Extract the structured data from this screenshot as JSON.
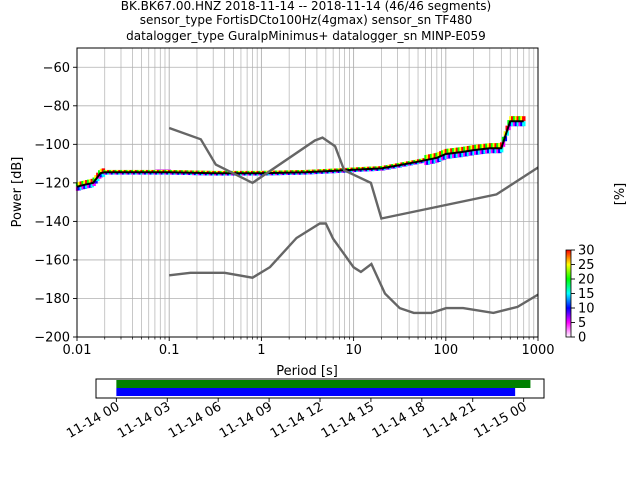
{
  "title_lines": [
    "BK.BK67.00.HNZ   2018-11-14 -- 2018-11-14  (46/46 segments)",
    "sensor_type FortisDCto100Hz(4gmax) sensor_sn TF480",
    "datalogger_type GuralpMinimus+ datalogger_sn MINP-E059"
  ],
  "chart_data": [
    {
      "type": "heatmap",
      "description_kind": "probabilistic power spectral density",
      "xlabel": "Period [s]",
      "ylabel": "Power [dB]",
      "xscale": "log",
      "xlim": [
        0.01,
        1000
      ],
      "ylim": [
        -200,
        -50
      ],
      "xtick_labels": [
        "0.01",
        "0.1",
        "1",
        "10",
        "100",
        "1000"
      ],
      "yticks": [
        -200,
        -180,
        -160,
        -140,
        -120,
        -100,
        -80,
        -60
      ],
      "grid": true,
      "colorbar": {
        "label": "[%]",
        "range": [
          0,
          30
        ],
        "ticks": [
          0,
          5,
          10,
          15,
          20,
          25,
          30
        ],
        "colors": [
          "#ffffff",
          "#ff00ff",
          "#0000ff",
          "#00ffff",
          "#00ff00",
          "#ffff00",
          "#ff0000"
        ]
      },
      "noise_models": [
        {
          "name": "high",
          "x": [
            0.1,
            0.22,
            0.32,
            0.8,
            3.8,
            4.6,
            6.3,
            7.9,
            15.4,
            20,
            354.8,
            1000
          ],
          "y": [
            -91.5,
            -97.4,
            -110.5,
            -120,
            -98,
            -96.5,
            -101,
            -113.5,
            -120,
            -138.5,
            -126,
            -112
          ]
        },
        {
          "name": "low",
          "x": [
            0.1,
            0.17,
            0.4,
            0.8,
            1.24,
            2.4,
            4.3,
            5,
            6,
            10,
            12,
            15.6,
            21.9,
            31.6,
            45,
            70,
            101,
            154,
            328,
            600,
            1000
          ],
          "y": [
            -168,
            -166.7,
            -166.7,
            -169.2,
            -163.7,
            -148.6,
            -141.1,
            -141.1,
            -149,
            -163.8,
            -166.2,
            -162.1,
            -177.5,
            -185,
            -187.5,
            -187.5,
            -185,
            -185,
            -187.5,
            -184.4,
            -178
          ]
        }
      ],
      "mode_curve": {
        "color": "#000000",
        "x": [
          0.01,
          0.012,
          0.015,
          0.018,
          0.02,
          0.05,
          0.1,
          0.3,
          1,
          3,
          5,
          8,
          12,
          20,
          30,
          50,
          80,
          100,
          150,
          200,
          300,
          400,
          500,
          600,
          700
        ],
        "y": [
          -122,
          -121,
          -120,
          -115,
          -114.5,
          -114.5,
          -114.5,
          -115,
          -115,
          -114.5,
          -114,
          -113.5,
          -113,
          -112.5,
          -111,
          -109,
          -107,
          -105,
          -104,
          -103,
          -102,
          -102,
          -88,
          -88,
          -88
        ]
      },
      "magenta_hump": {
        "x": [
          0.01,
          0.015,
          0.02,
          0.025,
          0.03,
          0.04,
          0.05,
          0.07,
          0.1
        ],
        "y": [
          -119,
          -112,
          -107,
          -105,
          -105,
          -107,
          -110,
          -113,
          -114.5
        ]
      }
    },
    {
      "type": "bar",
      "description_kind": "data coverage timeline",
      "tick_labels": [
        "11-14 00",
        "11-14 03",
        "11-14 06",
        "11-14 09",
        "11-14 12",
        "11-14 15",
        "11-14 18",
        "11-14 21",
        "11-15 00"
      ],
      "tick_hours": [
        0,
        3,
        6,
        9,
        12,
        15,
        18,
        21,
        24
      ],
      "xlim_hours": [
        -1.2,
        25.2
      ],
      "series": [
        {
          "color": "#008000",
          "start_hour": 0,
          "end_hour": 24.4
        },
        {
          "color": "#0000ff",
          "start_hour": 0,
          "end_hour": 23.5
        }
      ]
    }
  ]
}
